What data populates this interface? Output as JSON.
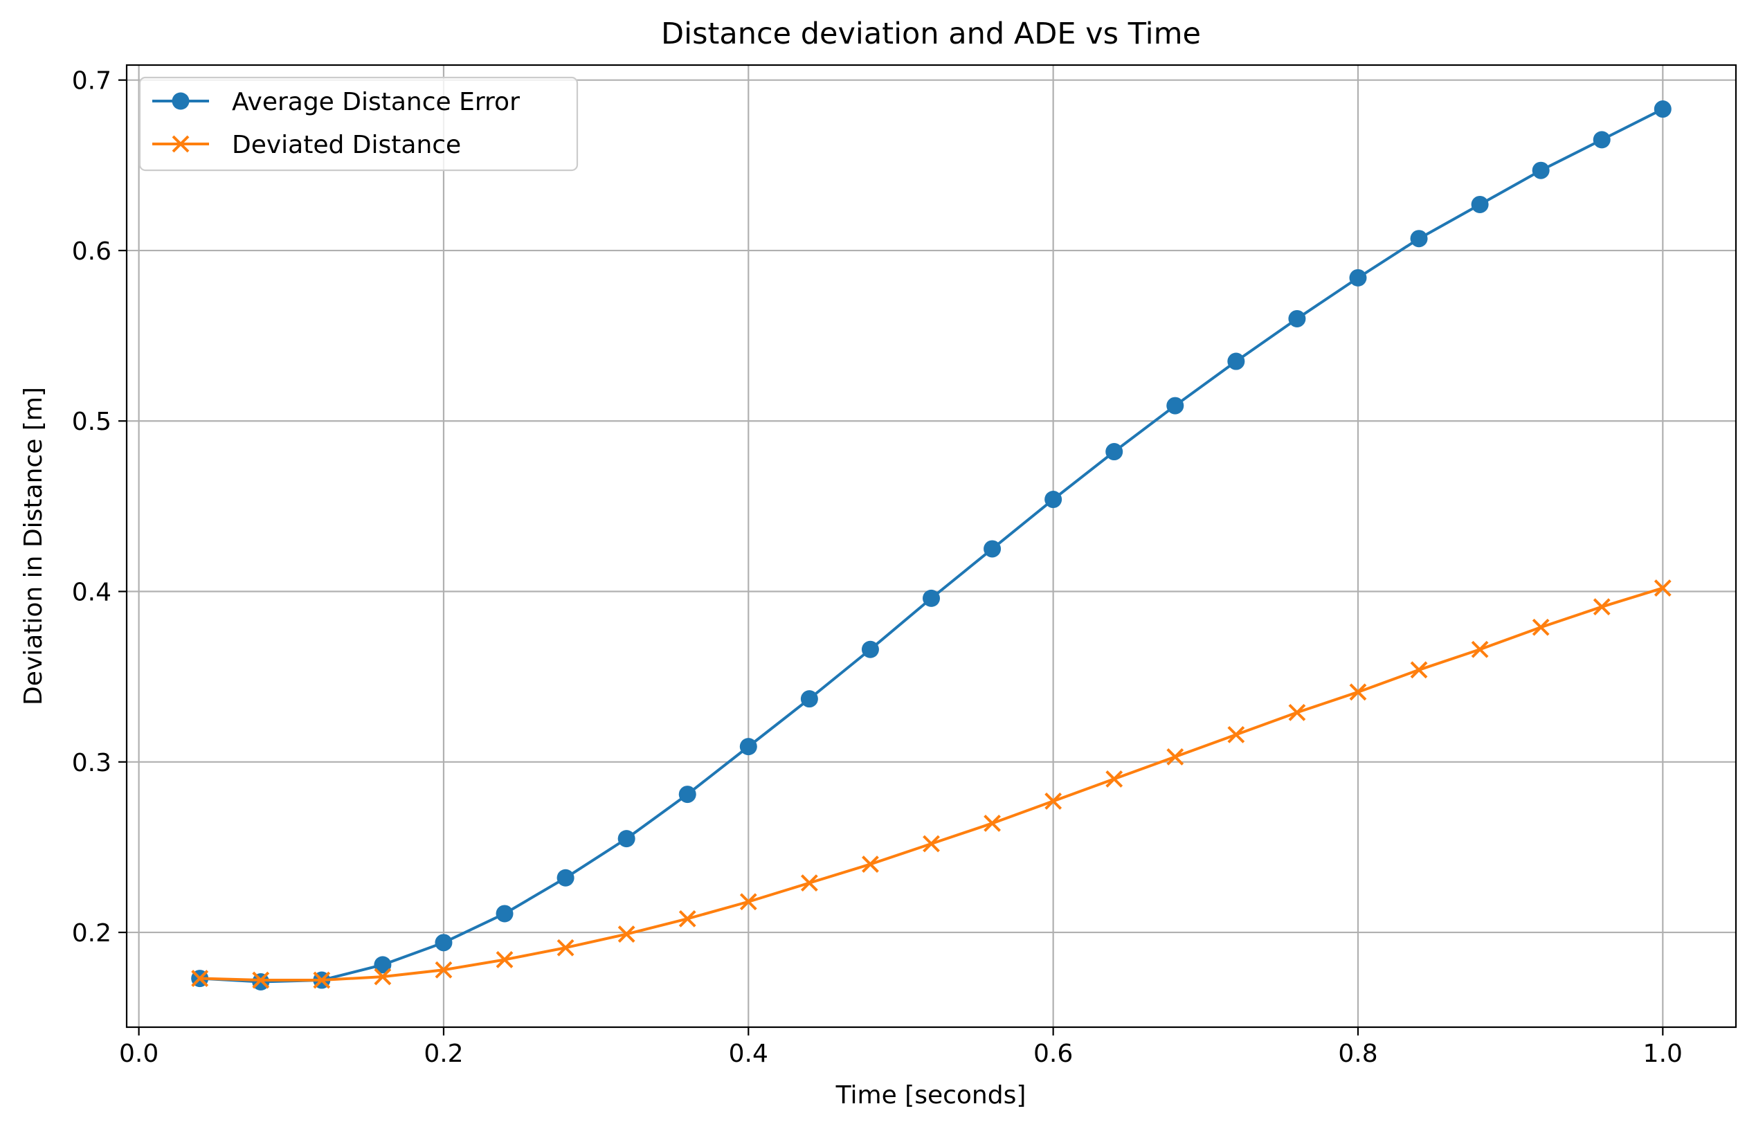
{
  "chart_data": {
    "type": "line",
    "title": "Distance deviation and ADE vs Time",
    "xlabel": "Time [seconds]",
    "ylabel": "Deviation in Distance [m]",
    "xlim": [
      -0.008,
      1.048
    ],
    "ylim": [
      0.1444,
      0.7088
    ],
    "x_ticks": [
      0.0,
      0.2,
      0.4,
      0.6,
      0.8,
      1.0
    ],
    "x_tick_labels": [
      "0.0",
      "0.2",
      "0.4",
      "0.6",
      "0.8",
      "1.0"
    ],
    "y_ticks": [
      0.2,
      0.3,
      0.4,
      0.5,
      0.6,
      0.7
    ],
    "y_tick_labels": [
      "0.2",
      "0.3",
      "0.4",
      "0.5",
      "0.6",
      "0.7"
    ],
    "grid": true,
    "legend_position": "top-left",
    "x": [
      0.04,
      0.08,
      0.12,
      0.16,
      0.2,
      0.24,
      0.28,
      0.32,
      0.36,
      0.4,
      0.44,
      0.48,
      0.52,
      0.56,
      0.6,
      0.64,
      0.68,
      0.72,
      0.76,
      0.8,
      0.84,
      0.88,
      0.92,
      0.96,
      1.0
    ],
    "series": [
      {
        "name": "Average Distance Error",
        "color": "#1f77b4",
        "marker": "circle",
        "values": [
          0.173,
          0.171,
          0.172,
          0.181,
          0.194,
          0.211,
          0.232,
          0.255,
          0.281,
          0.309,
          0.337,
          0.366,
          0.396,
          0.425,
          0.454,
          0.482,
          0.509,
          0.535,
          0.56,
          0.584,
          0.607,
          0.627,
          0.647,
          0.665,
          0.683
        ]
      },
      {
        "name": "Deviated Distance",
        "color": "#ff7f0e",
        "marker": "x",
        "values": [
          0.173,
          0.172,
          0.172,
          0.174,
          0.178,
          0.184,
          0.191,
          0.199,
          0.208,
          0.218,
          0.229,
          0.24,
          0.252,
          0.264,
          0.277,
          0.29,
          0.303,
          0.316,
          0.329,
          0.341,
          0.354,
          0.366,
          0.379,
          0.391,
          0.402
        ]
      }
    ]
  }
}
